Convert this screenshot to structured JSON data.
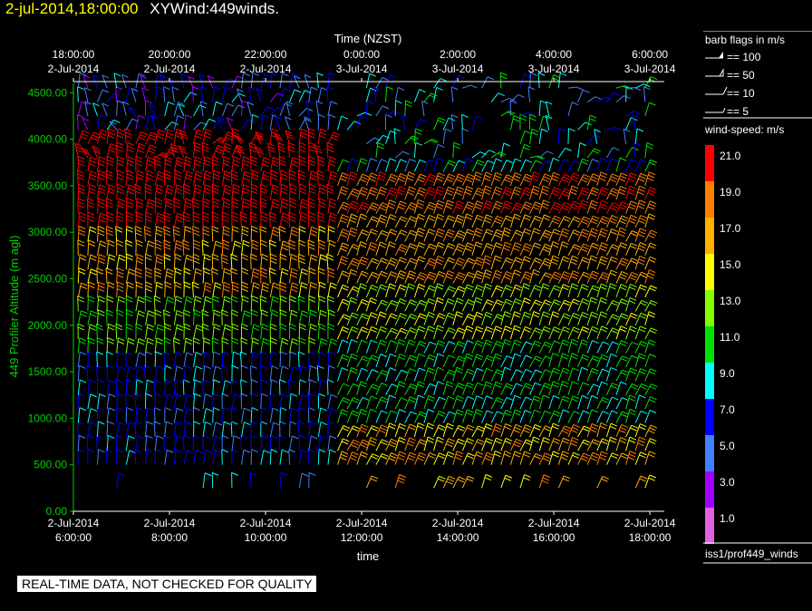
{
  "header": {
    "time": "2-jul-2014,18:00:00",
    "name": "XYWind:449winds."
  },
  "footer": "REAL-TIME DATA, NOT CHECKED FOR QUALITY",
  "source_label": "iss1/prof449_winds",
  "barb_legend": {
    "title": "barb flags in m/s",
    "items": [
      "== 100",
      "== 50",
      "== 10",
      "== 5"
    ]
  },
  "speed_legend": {
    "title": "wind-speed: m/s",
    "bins": [
      {
        "label": "21.0",
        "color": "#ff0000"
      },
      {
        "label": "19.0",
        "color": "#ff8000"
      },
      {
        "label": "17.0",
        "color": "#ffb000"
      },
      {
        "label": "15.0",
        "color": "#ffff00"
      },
      {
        "label": "13.0",
        "color": "#80ff00"
      },
      {
        "label": "11.0",
        "color": "#00e000"
      },
      {
        "label": "9.0",
        "color": "#00ffff"
      },
      {
        "label": "7.0",
        "color": "#0000ff"
      },
      {
        "label": "5.0",
        "color": "#4080ff"
      },
      {
        "label": "3.0",
        "color": "#a000ff"
      },
      {
        "label": "1.0",
        "color": "#e060e0"
      }
    ]
  },
  "chart_data": {
    "type": "scatter",
    "top_axis_title": "Time (NZST)",
    "xlabel": "time",
    "ylabel": "449 Profiler Altitude (m agl)",
    "ylim": [
      0,
      4600
    ],
    "xlim_hours": [
      6,
      18.3
    ],
    "yticks": [
      "0.00",
      "500.00",
      "1000.00",
      "1500.00",
      "2000.00",
      "2500.00",
      "3000.00",
      "3500.00",
      "4000.00",
      "4500.00"
    ],
    "bottom_ticks": [
      {
        "date": "2-Jul-2014",
        "time": "6:00:00"
      },
      {
        "date": "2-Jul-2014",
        "time": "8:00:00"
      },
      {
        "date": "2-Jul-2014",
        "time": "10:00:00"
      },
      {
        "date": "2-Jul-2014",
        "time": "12:00:00"
      },
      {
        "date": "2-Jul-2014",
        "time": "14:00:00"
      },
      {
        "date": "2-Jul-2014",
        "time": "16:00:00"
      },
      {
        "date": "2-Jul-2014",
        "time": "18:00:00"
      }
    ],
    "top_ticks": [
      {
        "time": "18:00:00",
        "date": "2-Jul-2014"
      },
      {
        "time": "20:00:00",
        "date": "2-Jul-2014"
      },
      {
        "time": "22:00:00",
        "date": "2-Jul-2014"
      },
      {
        "time": "0:00:00",
        "date": "3-Jul-2014"
      },
      {
        "time": "2:00:00",
        "date": "3-Jul-2014"
      },
      {
        "time": "4:00:00",
        "date": "3-Jul-2014"
      },
      {
        "time": "6:00:00",
        "date": "3-Jul-2014"
      }
    ],
    "barb_times_hours": [
      6.1,
      6.3,
      6.5,
      6.7,
      6.9,
      7.1,
      7.3,
      7.5,
      7.7,
      7.9,
      8.1,
      8.3,
      8.5,
      8.7,
      8.9,
      9.1,
      9.3,
      9.5,
      9.7,
      9.9,
      10.1,
      10.3,
      10.5,
      10.7,
      10.9,
      11.1,
      11.3,
      11.5,
      11.7,
      11.9,
      12.1,
      12.3,
      12.5,
      12.7,
      12.9,
      13.1,
      13.3,
      13.5,
      13.7,
      13.9,
      14.1,
      14.3,
      14.5,
      14.7,
      14.9,
      15.1,
      15.3,
      15.5,
      15.7,
      15.9,
      16.1,
      16.3,
      16.5,
      16.7,
      16.9,
      17.1,
      17.3,
      17.5,
      17.7,
      17.9
    ],
    "barb_altitudes_m": [
      250,
      500,
      650,
      800,
      950,
      1100,
      1250,
      1400,
      1550,
      1700,
      1850,
      2000,
      2150,
      2300,
      2450,
      2600,
      2750,
      2900,
      3050,
      3200,
      3350,
      3500,
      3650,
      3800,
      3950,
      4100,
      4250,
      4400,
      4550
    ]
  }
}
